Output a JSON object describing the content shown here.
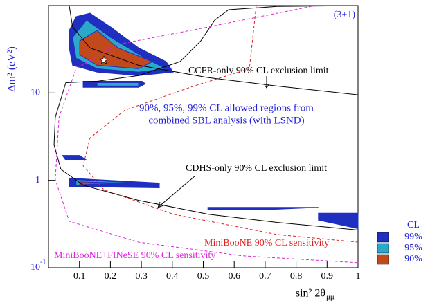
{
  "chart_data": {
    "type": "contour",
    "ylabel": "Δm² (eV²)",
    "xlabel": "sin² 2θ",
    "xlabel_sub": "μμ",
    "xlim": [
      0,
      1
    ],
    "xticks": [
      0.1,
      0.2,
      0.3,
      0.4,
      0.5,
      0.6,
      0.7,
      0.8,
      0.9,
      1
    ],
    "ylim": [
      0.1,
      100
    ],
    "ylog": true,
    "yticks": [
      {
        "value": 0.1,
        "label": "10",
        "sup": "-1"
      },
      1,
      10
    ],
    "grid": false,
    "legend_title": "CL",
    "annotations": [
      {
        "text": "(3+1)"
      },
      {
        "text": "CCFR-only 90% CL exclusion limit"
      },
      {
        "text": "90%, 95%, 99% CL allowed regions from"
      },
      {
        "text": "combined SBL analysis (with LSND)"
      },
      {
        "text": "CDHS-only 90% CL exclusion limit"
      },
      {
        "text": "MiniBooNE 90% CL sensitivity"
      },
      {
        "text": "MiniBooNE+FINeSE 90% CL sensitivity"
      }
    ],
    "best_fit": {
      "x": 0.179,
      "y": 23.6
    },
    "series": [
      {
        "name": "99%",
        "color": "#1f2fbf",
        "polygons": [
          {
            "x": [
              0.067,
              0.089,
              0.134,
              0.201,
              0.291,
              0.38,
              0.403,
              0.291,
              0.157,
              0.078,
              0.067
            ],
            "y": [
              51.8,
              74.6,
              81.8,
              56.8,
              32.8,
              22.8,
              17.3,
              15.8,
              17.3,
              20.7,
              32.8
            ]
          },
          {
            "x": [
              0.112,
              0.302,
              0.313,
              0.291,
              0.112
            ],
            "y": [
              13.6,
              13.6,
              12.7,
              11.6,
              11.6
            ]
          },
          {
            "x": [
              0.067,
              0.358,
              0.358,
              0.067
            ],
            "y": [
              1.06,
              0.93,
              0.82,
              0.85
            ]
          },
          {
            "x": [
              0.515,
              0.872,
              0.694,
              0.515
            ],
            "y": [
              0.49,
              0.49,
              0.46,
              0.46
            ]
          },
          {
            "x": [
              0.872,
              1.0,
              1.0,
              0.872
            ],
            "y": [
              0.42,
              0.42,
              0.28,
              0.35
            ]
          },
          {
            "x": [
              0.045,
              0.101,
              0.123,
              0.056
            ],
            "y": [
              1.93,
              1.93,
              1.7,
              1.7
            ]
          }
        ]
      },
      {
        "name": "95%",
        "color": "#2aa9c9",
        "polygons": [
          {
            "x": [
              0.078,
              0.123,
              0.201,
              0.313,
              0.38,
              0.291,
              0.157,
              0.089
            ],
            "y": [
              43.2,
              68.1,
              43.2,
              24.9,
              18.9,
              17.3,
              18.9,
              24.9
            ]
          },
          {
            "x": [
              0.157,
              0.291,
              0.291,
              0.157
            ],
            "y": [
              13.1,
              13.1,
              12.0,
              12.0
            ]
          },
          {
            "x": [
              0.089,
              0.291,
              0.089
            ],
            "y": [
              1.02,
              0.93,
              0.88
            ]
          }
        ]
      },
      {
        "name": "90%",
        "color": "#c2491c",
        "polygons": [
          {
            "x": [
              0.101,
              0.157,
              0.224,
              0.336,
              0.291,
              0.157,
              0.101
            ],
            "y": [
              39.4,
              51.8,
              32.8,
              22.8,
              18.9,
              20.7,
              27.3
            ]
          },
          {
            "x": [
              0.101,
              0.246,
              0.101
            ],
            "y": [
              0.96,
              0.93,
              0.89
            ]
          }
        ]
      }
    ],
    "curves": [
      {
        "color": "#000000",
        "dash": false,
        "x": [
          0.067,
          0.078,
          0.134,
          0.291,
          0.515,
          0.738,
          1.0
        ],
        "y": [
          100,
          56.8,
          32.8,
          20.7,
          15.0,
          12.0,
          9.5
        ]
      },
      {
        "color": "#000000",
        "dash": false,
        "x": [
          1.0,
          0.738,
          0.582,
          0.537,
          0.492,
          0.425,
          0.291,
          0.157,
          0.056,
          0.022,
          0.018,
          0.04,
          0.112,
          0.291,
          0.515,
          0.738,
          1.0
        ],
        "y": [
          100,
          97.7,
          89.6,
          68.0,
          39.4,
          22.8,
          15.8,
          13.6,
          13.1,
          5.27,
          2.54,
          1.34,
          0.88,
          0.59,
          0.41,
          0.33,
          0.27
        ]
      },
      {
        "color": "#e02020",
        "dash": true,
        "x": [
          0.671,
          0.649,
          0.47,
          0.246,
          0.134,
          0.112,
          0.179,
          0.403,
          0.738,
          1.0
        ],
        "y": [
          98,
          18.9,
          12.0,
          6.33,
          3.05,
          1.47,
          0.78,
          0.41,
          0.24,
          0.196
        ]
      },
      {
        "color": "#e020e0",
        "dash": true,
        "x": [
          0.85,
          0.515,
          0.224,
          0.089,
          0.034,
          0.022,
          0.067,
          0.291,
          0.626,
          1.0
        ],
        "y": [
          98,
          56.7,
          35.9,
          18.9,
          5.27,
          1.02,
          0.34,
          0.196,
          0.137,
          0.114
        ]
      }
    ]
  }
}
